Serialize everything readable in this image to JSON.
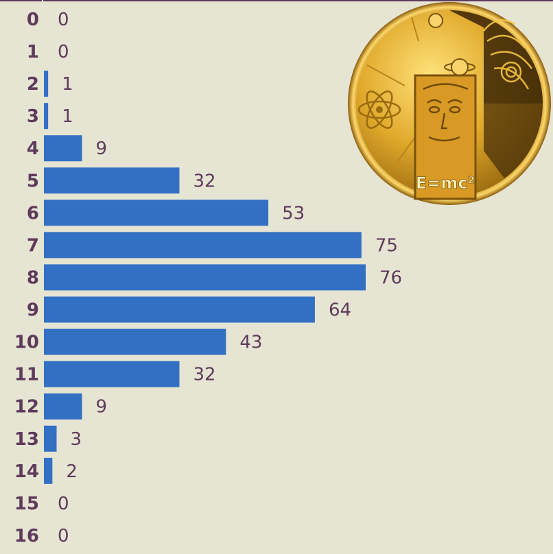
{
  "chart_data": {
    "type": "bar",
    "orientation": "horizontal",
    "categories": [
      "0",
      "1",
      "2",
      "3",
      "4",
      "5",
      "6",
      "7",
      "8",
      "9",
      "10",
      "11",
      "12",
      "13",
      "14",
      "15",
      "16"
    ],
    "values": [
      0,
      0,
      1,
      1,
      9,
      32,
      53,
      75,
      76,
      64,
      43,
      32,
      9,
      3,
      2,
      0,
      0
    ],
    "title": "",
    "xlabel": "",
    "ylabel": "",
    "xlim": [
      0,
      76
    ],
    "grid": false,
    "colors": {
      "bar": "#3270c4",
      "text": "#5e3a5b",
      "background": "#e6e5d3"
    }
  },
  "decoration": {
    "coin_text": "E=mc²"
  }
}
